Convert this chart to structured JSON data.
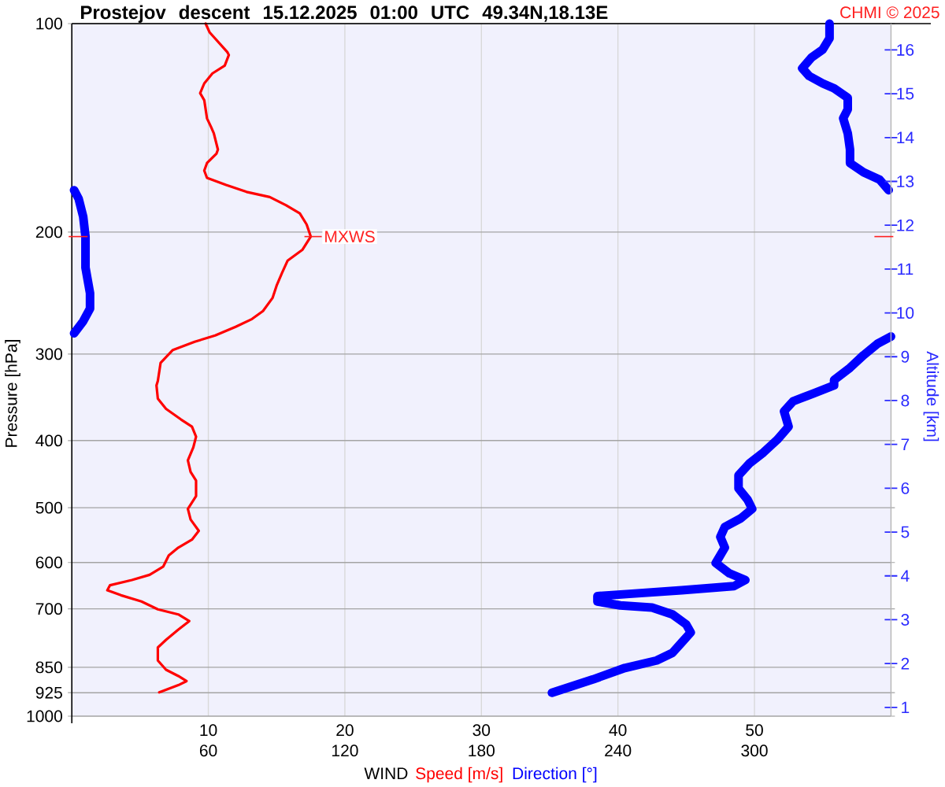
{
  "chart_data": {
    "type": "line",
    "orientation": "horizontal",
    "title": "Prostejov descent 15.12.2025 01:00 UTC 49.34N,18.13E",
    "xlabel": "WIND",
    "ylabel": "Pressure [hPa]",
    "y2label": "Altitude [km]",
    "annotations": [
      "CHMI © 2025",
      {
        "text": "MXWS",
        "x": 17.5,
        "y": 203
      }
    ],
    "xlim": [
      0,
      60
    ],
    "xticks": [
      10,
      20,
      30,
      40,
      50
    ],
    "x2lim": [
      0,
      360
    ],
    "x2ticks": [
      60,
      120,
      180,
      240,
      300
    ],
    "ylim": [
      1000,
      100
    ],
    "yticks": [
      100,
      200,
      300,
      400,
      500,
      600,
      700,
      850,
      925,
      1000
    ],
    "y2lim": [
      0.8,
      16.6
    ],
    "y2ticks": [
      1,
      2,
      3,
      4,
      5,
      6,
      7,
      8,
      9,
      10,
      11,
      12,
      13,
      14,
      15,
      16
    ],
    "log": "y",
    "grid": true,
    "legend": "bottom",
    "series": [
      {
        "name": "Speed [m/s]",
        "color": "#ff0000",
        "values": [
          9.8,
          10.1,
          11.4,
          11.5,
          11.2,
          10.3,
          9.7,
          9.4,
          9.7,
          9.9,
          10.2,
          10.4,
          10.7,
          10.6,
          9.9,
          9.7,
          9.9,
          11.3,
          12.8,
          14.5,
          15.7,
          16.7,
          17.2,
          17.5,
          16.9,
          15.8,
          15.4,
          15.0,
          14.7,
          14.0,
          13.2,
          12.0,
          10.5,
          9.0,
          7.4,
          6.5,
          6.3,
          6.2,
          6.3,
          6.9,
          8.0,
          8.8,
          9.1,
          8.9,
          8.5,
          8.7,
          9.1,
          9.1,
          8.5,
          8.7,
          9.3,
          8.8,
          7.8,
          7.1,
          6.7,
          5.7,
          4.4,
          2.8,
          2.6,
          3.6,
          5.1,
          6.3,
          7.8,
          8.6,
          7.8,
          6.9,
          6.3,
          6.3,
          6.9,
          7.8,
          8.4,
          7.8,
          6.4
        ],
        "x": [
          100,
          103,
          110,
          111,
          115,
          118,
          122,
          126,
          129,
          137,
          141,
          144,
          152,
          154,
          159,
          163,
          167,
          171,
          175,
          178,
          183,
          188,
          195,
          203,
          212,
          220,
          229,
          239,
          249,
          260,
          267,
          274,
          282,
          288,
          296,
          309,
          328,
          333,
          348,
          360,
          373,
          382,
          395,
          409,
          427,
          444,
          457,
          481,
          502,
          520,
          540,
          556,
          571,
          586,
          608,
          625,
          636,
          647,
          658,
          669,
          683,
          701,
          713,
          729,
          750,
          776,
          796,
          831,
          857,
          875,
          890,
          902,
          924
        ]
      },
      {
        "name": "Direction [°]",
        "color": "#0000ff",
        "axis": "x2",
        "values": [
          333,
          333,
          330,
          325,
          321,
          324,
          330,
          335,
          341,
          341,
          339,
          341,
          342,
          342,
          348,
          355,
          359,
          null,
          1,
          3,
          5,
          6,
          6,
          8,
          8,
          5,
          1,
          null,
          360,
          354,
          348,
          342,
          335,
          335,
          326,
          317,
          313,
          315,
          310,
          304,
          298,
          293,
          293,
          297,
          299,
          294,
          287,
          285,
          287,
          283,
          289,
          296,
          291,
          268,
          245,
          231,
          231,
          241,
          255,
          264,
          270,
          272,
          268,
          264,
          257,
          243,
          229,
          211
        ],
        "x": [
          100,
          105,
          109,
          112,
          116,
          119,
          122,
          124,
          128,
          133,
          137,
          144,
          152,
          159,
          164,
          168,
          174,
          null,
          174,
          179,
          190,
          203,
          225,
          245,
          258,
          269,
          280,
          null,
          283,
          290,
          301,
          314,
          327,
          333,
          342,
          351,
          363,
          382,
          399,
          416,
          431,
          449,
          469,
          487,
          502,
          518,
          533,
          551,
          571,
          601,
          622,
          636,
          649,
          658,
          666,
          671,
          683,
          692,
          697,
          713,
          737,
          757,
          783,
          810,
          831,
          852,
          885,
          925
        ]
      }
    ]
  }
}
